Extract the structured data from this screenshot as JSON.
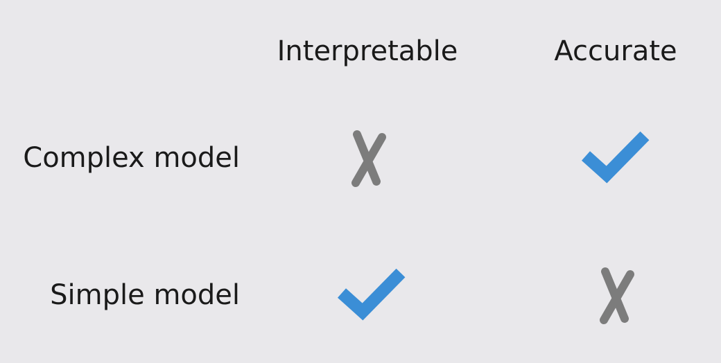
{
  "columns": [
    {
      "label": "Interpretable"
    },
    {
      "label": "Accurate"
    }
  ],
  "rows": [
    {
      "label": "Complex model",
      "cells": [
        "cross",
        "check"
      ]
    },
    {
      "label": "Simple model",
      "cells": [
        "check",
        "cross"
      ]
    }
  ],
  "colors": {
    "check": "#3b8ed6",
    "cross": "#7c7c7c",
    "text": "#1a1a1a",
    "background": "#e9e8eb"
  }
}
